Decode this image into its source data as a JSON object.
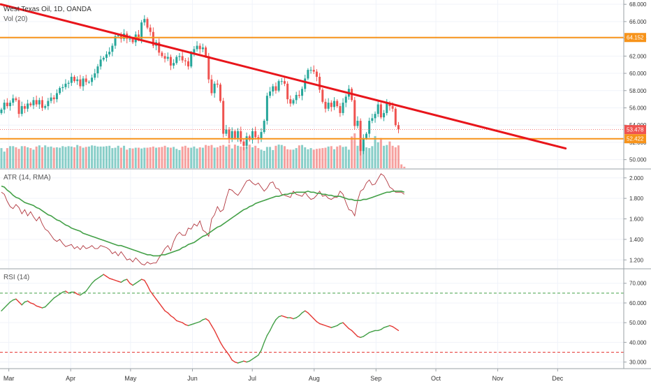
{
  "chart_data": [
    {
      "type": "candlestick",
      "title": "West Texas Oil, 1D, OANDA",
      "indicator_label": "Vol (20)",
      "x_axis_months": [
        "Mar",
        "Apr",
        "May",
        "Jun",
        "Jul",
        "Aug",
        "Sep",
        "Oct",
        "Nov",
        "Dec"
      ],
      "ylim": [
        49,
        68.5
      ],
      "y_ticks": [
        "50.000",
        "52.000",
        "54.000",
        "56.000",
        "58.000",
        "60.000",
        "62.000",
        "64.000",
        "66.000",
        "68.000"
      ],
      "price_labels": {
        "resistance": "64.152",
        "last": "53.478",
        "support": "52.422"
      },
      "horizontal_lines": [
        {
          "value": 64.152,
          "color": "#f7931a"
        },
        {
          "value": 52.422,
          "color": "#f7931a"
        }
      ],
      "trendline": {
        "from": [
          "2019-02-25",
          68.0
        ],
        "to": [
          "2019-12-05",
          51.3
        ],
        "color": "#e8151b"
      },
      "closes": [
        55.8,
        56.6,
        56.2,
        56.6,
        57.1,
        56.9,
        55.3,
        56.2,
        55.9,
        56.5,
        56.3,
        56.9,
        56.4,
        56.9,
        56.0,
        56.2,
        56.8,
        57.2,
        57.0,
        57.7,
        58.3,
        58.4,
        58.8,
        58.9,
        59.6,
        59.1,
        59.3,
        58.5,
        59.4,
        59.0,
        59.0,
        59.5,
        60.0,
        60.8,
        61.6,
        61.8,
        62.2,
        62.5,
        63.2,
        64.3,
        64.4,
        64.0,
        64.6,
        64.0,
        64.0,
        63.6,
        64.5,
        64.0,
        65.9,
        66.3,
        65.3,
        64.8,
        63.2,
        63.6,
        62.4,
        62.0,
        61.7,
        61.9,
        60.9,
        61.2,
        61.9,
        62.0,
        61.5,
        61.4,
        60.8,
        62.4,
        62.8,
        63.2,
        62.8,
        63.0,
        62.0,
        59.3,
        57.7,
        58.8,
        58.7,
        56.8,
        53.0,
        53.5,
        52.4,
        53.3,
        52.5,
        53.3,
        52.1,
        51.6,
        52.7,
        52.3,
        53.3,
        52.6,
        52.4,
        53.2,
        54.5,
        57.4,
        57.9,
        58.5,
        58.0,
        59.1,
        59.1,
        58.8,
        57.0,
        56.5,
        56.9,
        57.5,
        57.4,
        58.2,
        59.4,
        60.4,
        60.4,
        60.2,
        59.6,
        58.1,
        56.7,
        55.9,
        56.6,
        56.1,
        56.8,
        56.2,
        55.4,
        56.6,
        57.3,
        58.2,
        56.9,
        53.9,
        54.5,
        51.0,
        52.5,
        53.0,
        54.5,
        54.8,
        55.3,
        56.4,
        54.9,
        55.4,
        56.5,
        56.2,
        55.9,
        54.0,
        53.5
      ],
      "volumes": [
        52,
        43,
        52,
        57,
        57,
        54,
        50,
        57,
        57,
        54,
        52,
        48,
        56,
        59,
        54,
        59,
        55,
        56,
        53,
        54,
        53,
        57,
        55,
        57,
        56,
        54,
        60,
        57,
        53,
        55,
        56,
        59,
        58,
        56,
        56,
        56,
        57,
        58,
        52,
        53,
        58,
        53,
        58,
        48,
        52,
        51,
        53,
        53,
        51,
        53,
        53,
        54,
        56,
        53,
        54,
        55,
        58,
        54,
        53,
        55,
        50,
        47,
        56,
        58,
        53,
        53,
        56,
        51,
        54,
        53,
        60,
        58,
        60,
        53,
        54,
        58,
        60,
        56,
        61,
        51,
        61,
        58,
        56,
        55,
        56,
        61,
        54,
        58,
        52,
        48,
        45,
        55,
        55,
        47,
        58,
        61,
        60,
        57,
        49,
        48,
        48,
        52,
        59,
        60,
        54,
        49,
        52,
        48,
        50,
        51,
        52,
        53,
        56,
        57,
        49,
        56,
        59,
        55,
        56,
        48,
        82,
        90,
        58,
        61,
        66,
        54,
        52,
        57,
        83,
        67,
        78,
        58,
        60,
        69,
        58,
        54,
        59,
        10,
        4
      ],
      "up_color": "#26a69a",
      "down_color": "#ef5350"
    },
    {
      "type": "line",
      "title": "ATR (14, RMA)",
      "ylim": [
        1.12,
        2.08
      ],
      "y_ticks": [
        "1.200",
        "1.400",
        "1.600",
        "1.800",
        "2.000"
      ],
      "series": [
        {
          "values": [
            1.86,
            1.84,
            1.77,
            1.72,
            1.7,
            1.74,
            1.71,
            1.65,
            1.69,
            1.63,
            1.67,
            1.62,
            1.58,
            1.62,
            1.55,
            1.5,
            1.48,
            1.44,
            1.4,
            1.38,
            1.4,
            1.36,
            1.33,
            1.34,
            1.35,
            1.31,
            1.33,
            1.3,
            1.34,
            1.31,
            1.32,
            1.34,
            1.31,
            1.31,
            1.34,
            1.33,
            1.32,
            1.3,
            1.26,
            1.28,
            1.24,
            1.28,
            1.24,
            1.2,
            1.21,
            1.18,
            1.22,
            1.19,
            1.16,
            1.15,
            1.18,
            1.16,
            1.17,
            1.17,
            1.22,
            1.26,
            1.31,
            1.34,
            1.29,
            1.38,
            1.44,
            1.47,
            1.44,
            1.44,
            1.51,
            1.5,
            1.55,
            1.53,
            1.58,
            1.49,
            1.47,
            1.43,
            1.6,
            1.64,
            1.72,
            1.67,
            1.69,
            1.8,
            1.89,
            1.88,
            1.85,
            1.83,
            1.87,
            1.92,
            1.97,
            1.98,
            1.95,
            1.93,
            1.95,
            1.91,
            1.87,
            1.9,
            1.95,
            1.96,
            1.9,
            1.89,
            1.84,
            1.83,
            1.82,
            1.81,
            1.87,
            1.84,
            1.83,
            1.82,
            1.86,
            1.82,
            1.79,
            1.8,
            1.83,
            1.87,
            1.82,
            1.83,
            1.8,
            1.79,
            1.81,
            1.81,
            1.87,
            1.84,
            1.76,
            1.69,
            1.68,
            1.63,
            1.78,
            1.87,
            1.89,
            1.95,
            1.98,
            1.93,
            1.94,
            1.99,
            2.04,
            2.02,
            1.97,
            1.91,
            1.89,
            1.86,
            1.86,
            1.86,
            1.84
          ],
          "color": "#b2373f"
        },
        {
          "values": [
            1.92,
            1.91,
            1.88,
            1.86,
            1.83,
            1.81,
            1.8,
            1.78,
            1.76,
            1.75,
            1.74,
            1.73,
            1.71,
            1.7,
            1.68,
            1.66,
            1.64,
            1.63,
            1.61,
            1.59,
            1.58,
            1.56,
            1.54,
            1.53,
            1.51,
            1.5,
            1.49,
            1.48,
            1.46,
            1.45,
            1.44,
            1.43,
            1.42,
            1.41,
            1.4,
            1.39,
            1.38,
            1.37,
            1.36,
            1.35,
            1.34,
            1.34,
            1.33,
            1.32,
            1.31,
            1.3,
            1.29,
            1.28,
            1.27,
            1.26,
            1.25,
            1.25,
            1.24,
            1.24,
            1.24,
            1.25,
            1.25,
            1.26,
            1.27,
            1.28,
            1.29,
            1.3,
            1.32,
            1.33,
            1.35,
            1.36,
            1.37,
            1.39,
            1.41,
            1.43,
            1.44,
            1.46,
            1.48,
            1.5,
            1.52,
            1.53,
            1.55,
            1.57,
            1.59,
            1.61,
            1.63,
            1.65,
            1.67,
            1.69,
            1.7,
            1.72,
            1.73,
            1.75,
            1.76,
            1.77,
            1.78,
            1.79,
            1.8,
            1.81,
            1.82,
            1.82,
            1.83,
            1.84,
            1.84,
            1.85,
            1.85,
            1.86,
            1.86,
            1.86,
            1.86,
            1.87,
            1.86,
            1.86,
            1.85,
            1.85,
            1.84,
            1.84,
            1.83,
            1.83,
            1.82,
            1.82,
            1.82,
            1.81,
            1.8,
            1.79,
            1.79,
            1.78,
            1.78,
            1.78,
            1.79,
            1.79,
            1.8,
            1.81,
            1.82,
            1.83,
            1.84,
            1.85,
            1.86,
            1.86,
            1.87,
            1.87,
            1.87,
            1.87,
            1.86
          ],
          "color": "#43a047"
        }
      ]
    },
    {
      "type": "line",
      "title": "RSI (14)",
      "ylim": [
        27,
        77
      ],
      "y_ticks": [
        "30.000",
        "40.000",
        "50.000",
        "60.000",
        "70.000"
      ],
      "bands": [
        {
          "value": 65,
          "color": "#43a047"
        },
        {
          "value": 35,
          "color": "#e53935"
        }
      ],
      "series": [
        {
          "values": [
            56.0,
            57.5,
            59.0,
            60.5,
            61.5,
            62.0,
            60.5,
            59.0,
            60.5,
            61.0,
            60.0,
            59.5,
            58.5,
            58.0,
            57.5,
            58.0,
            59.5,
            61.0,
            62.5,
            63.5,
            64.5,
            65.5,
            66.0,
            65.0,
            65.5,
            65.5,
            64.5,
            64.0,
            65.0,
            66.0,
            68.0,
            70.0,
            71.5,
            72.5,
            73.5,
            74.5,
            73.5,
            72.5,
            72.0,
            71.5,
            71.0,
            70.5,
            71.5,
            72.0,
            70.0,
            69.0,
            70.0,
            71.0,
            72.0,
            71.5,
            69.0,
            66.0,
            64.0,
            62.0,
            60.0,
            58.0,
            56.0,
            55.0,
            53.5,
            52.5,
            51.0,
            50.5,
            50.0,
            49.0,
            48.5,
            49.0,
            49.5,
            50.0,
            50.5,
            51.5,
            52.0,
            51.0,
            48.5,
            46.0,
            43.0,
            40.0,
            37.5,
            35.5,
            33.5,
            31.0,
            30.0,
            29.5,
            30.0,
            30.5,
            30.0,
            30.5,
            31.5,
            32.5,
            33.5,
            36.0,
            40.0,
            43.5,
            46.0,
            49.0,
            51.5,
            53.0,
            53.5,
            53.0,
            52.5,
            52.5,
            52.0,
            52.5,
            53.5,
            55.0,
            56.0,
            55.0,
            53.5,
            52.0,
            50.5,
            49.5,
            49.0,
            48.5,
            48.0,
            47.5,
            48.0,
            48.5,
            49.5,
            50.0,
            48.5,
            47.0,
            46.0,
            44.5,
            43.0,
            42.5,
            43.0,
            44.0,
            45.0,
            45.5,
            46.0,
            46.0,
            46.5,
            47.5,
            48.0,
            48.5,
            48.0,
            47.0,
            46.0
          ],
          "colors_by_direction": {
            "up": "#43a047",
            "down": "#e53935"
          }
        }
      ]
    }
  ]
}
